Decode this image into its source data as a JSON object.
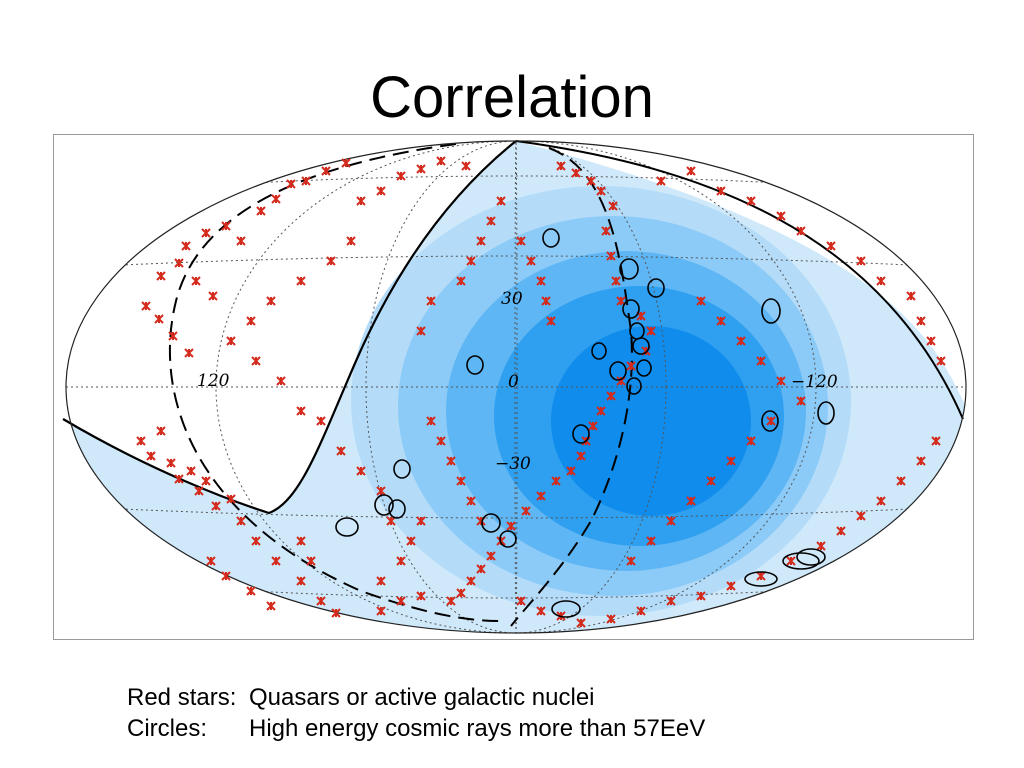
{
  "title": "Correlation",
  "sky_map": {
    "projection": "hammer-aitoff",
    "grid_labels": {
      "lon_120": "120",
      "lon_0": "0",
      "lon_minus_120": "−120",
      "lat_30": "30",
      "lat_minus_30": "−30"
    },
    "colors": {
      "exposure_levels": [
        "#cfe9fb",
        "#b4dcf9",
        "#8ccbf7",
        "#5fb6f4",
        "#2f9ff0",
        "#0f8cec"
      ],
      "star": "#d42a1c",
      "circle": "#000000",
      "grid": "#555555"
    }
  },
  "legend": {
    "stars_key": "Red stars:",
    "stars_value": "Quasars or active galactic nuclei",
    "circles_key": "Circles:",
    "circles_value": "High energy cosmic rays more than 57EeV"
  }
}
